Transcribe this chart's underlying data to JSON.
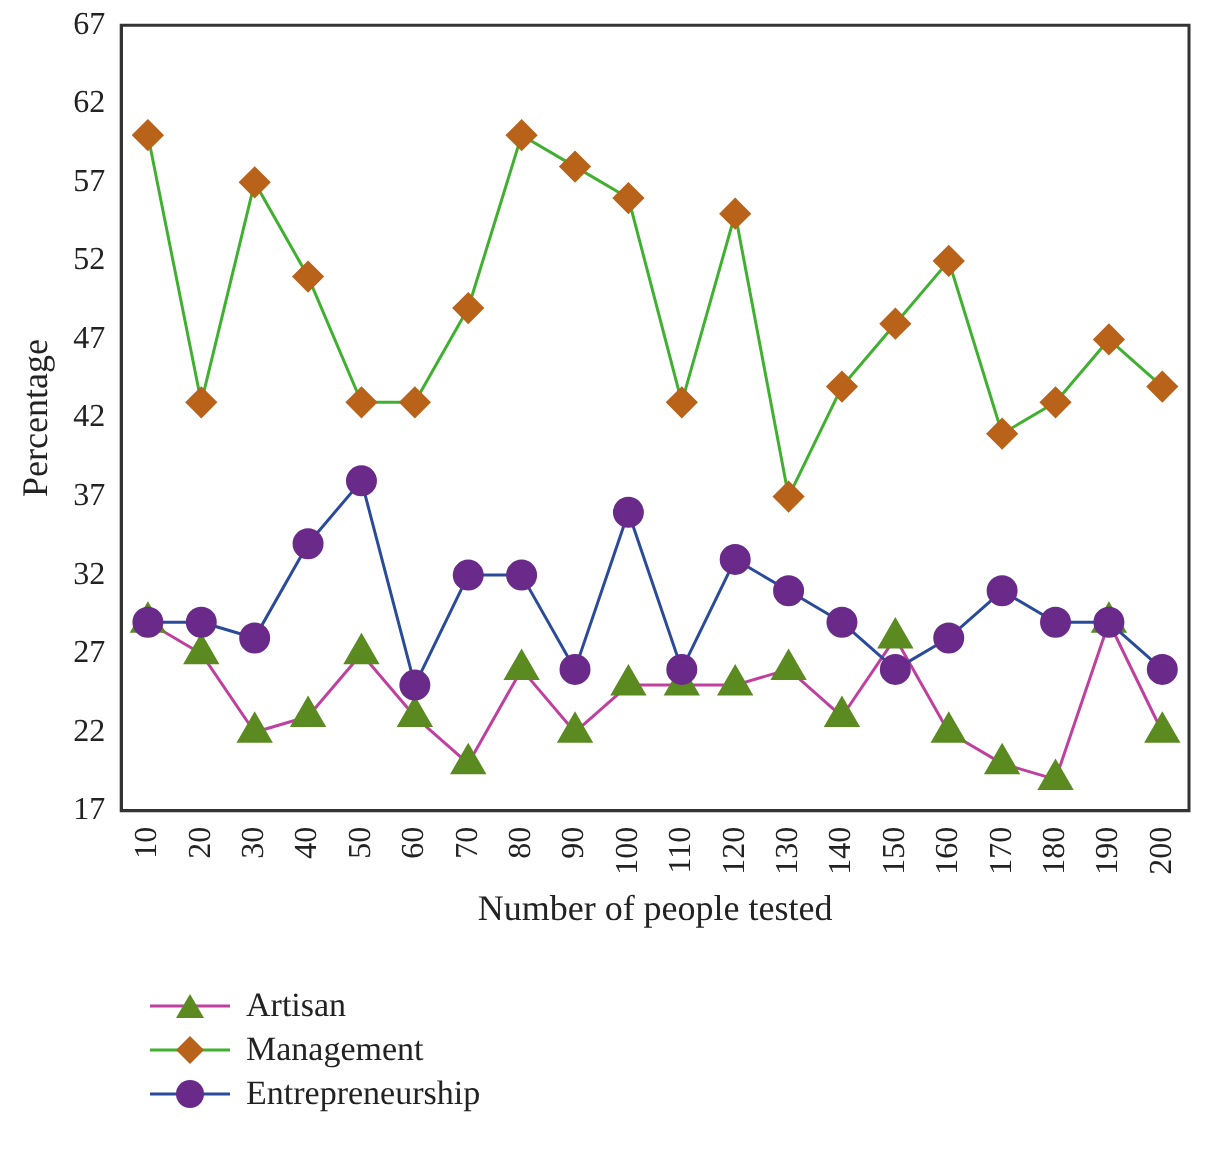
{
  "chart_data": {
    "type": "line",
    "xlabel": "Number of people tested",
    "ylabel": "Percentage",
    "categories": [
      "10",
      "20",
      "30",
      "40",
      "50",
      "60",
      "70",
      "80",
      "90",
      "100",
      "110",
      "120",
      "130",
      "140",
      "150",
      "160",
      "170",
      "180",
      "190",
      "200"
    ],
    "series": [
      {
        "name": "Artisan",
        "color": "#c040a0",
        "marker": "triangle",
        "colors": [
          "#5a8a20",
          "#5a8a20",
          "#5a8a20",
          "#5a8a20",
          "#5a8a20",
          "#5a8a20",
          "#5a8a20",
          "#5a8a20",
          "#5a8a20",
          "#5a8a20",
          "#5a8a20",
          "#5a8a20",
          "#5a8a20",
          "#5a8a20",
          "#5a8a20",
          "#5a8a20",
          "#5a8a20",
          "#5a8a20",
          "#5a8a20",
          "#5a8a20"
        ],
        "values": [
          29,
          27,
          22,
          23,
          27,
          23,
          20,
          26,
          22,
          25,
          25,
          25,
          26,
          23,
          28,
          22,
          20,
          19,
          29,
          22
        ]
      },
      {
        "name": "Management",
        "color": "#40b030",
        "marker": "diamond",
        "colors": [
          "#b8621a",
          "#b8621a",
          "#b8621a",
          "#b8621a",
          "#b8621a",
          "#b8621a",
          "#b8621a",
          "#b8621a",
          "#b8621a",
          "#b8621a",
          "#b8621a",
          "#b8621a",
          "#b8621a",
          "#b8621a",
          "#b8621a",
          "#b8621a",
          "#b8621a",
          "#b8621a",
          "#b8621a",
          "#b8621a"
        ],
        "values": [
          60,
          43,
          57,
          51,
          43,
          43,
          49,
          60,
          58,
          56,
          43,
          55,
          37,
          44,
          48,
          52,
          41,
          43,
          47,
          44
        ]
      },
      {
        "name": "Entrepreneurship",
        "color": "#2a4a9a",
        "marker": "circle",
        "colors": [
          "#6a2a8a",
          "#6a2a8a",
          "#6a2a8a",
          "#6a2a8a",
          "#6a2a8a",
          "#6a2a8a",
          "#6a2a8a",
          "#6a2a8a",
          "#6a2a8a",
          "#6a2a8a",
          "#6a2a8a",
          "#6a2a8a",
          "#6a2a8a",
          "#6a2a8a",
          "#6a2a8a",
          "#6a2a8a",
          "#6a2a8a",
          "#6a2a8a",
          "#6a2a8a",
          "#6a2a8a"
        ],
        "values": [
          29,
          29,
          28,
          34,
          38,
          25,
          32,
          32,
          26,
          36,
          26,
          33,
          31,
          29,
          26,
          28,
          31,
          29,
          29,
          26
        ]
      }
    ],
    "ylim": [
      17,
      67
    ],
    "yticks": [
      17,
      22,
      27,
      32,
      37,
      42,
      47,
      52,
      57,
      62,
      67
    ],
    "grid": false,
    "legend": "bottom left"
  }
}
